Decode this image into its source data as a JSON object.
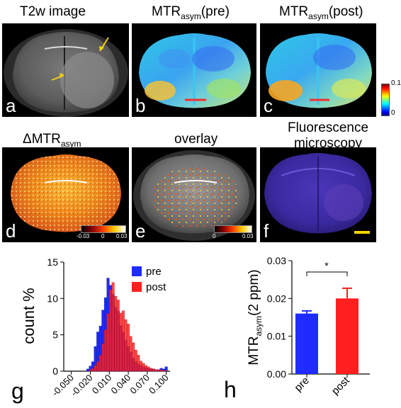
{
  "panels": {
    "a": {
      "label": "a",
      "title": "T2w image"
    },
    "b": {
      "label": "b",
      "title_main": "MTR",
      "title_sub": "asym",
      "title_tail": "(pre)"
    },
    "c": {
      "label": "c",
      "title_main": "MTR",
      "title_sub": "asym",
      "title_tail": "(post)"
    },
    "d": {
      "label": "d",
      "title_main": "ΔMTR",
      "title_sub": "asym"
    },
    "e": {
      "label": "e",
      "title": "overlay"
    },
    "f": {
      "label": "f",
      "title_line1": "Fluorescence",
      "title_line2": "microscopy"
    },
    "g": {
      "label": "g"
    },
    "h": {
      "label": "h"
    }
  },
  "colorbars": {
    "bc": {
      "max": "0.1",
      "min": "0"
    },
    "d": {
      "left": "-0.03",
      "mid": "0",
      "right": "0.03"
    },
    "e": {
      "left": "0",
      "right": "0.03"
    }
  },
  "colors": {
    "pre": "#1f2bff",
    "post": "#ff1f1f",
    "scale_bar": "#f2d400"
  },
  "chart_data": [
    {
      "type": "bar",
      "subtype": "histogram",
      "panel": "g",
      "ylabel": "count %",
      "xlabel": "",
      "x_ticks": [
        "-0.050",
        "-0.020",
        "0.010",
        "0.040",
        "0.070",
        "0.100"
      ],
      "y_ticks": [
        "0",
        "5",
        "10",
        "15"
      ],
      "ylim": [
        0,
        15
      ],
      "xlim": [
        -0.062,
        0.106
      ],
      "bin_width": 0.004,
      "bin_centers": [
        -0.04,
        -0.036,
        -0.032,
        -0.028,
        -0.024,
        -0.02,
        -0.016,
        -0.012,
        -0.008,
        -0.004,
        0.0,
        0.004,
        0.008,
        0.012,
        0.016,
        0.02,
        0.024,
        0.028,
        0.032,
        0.036,
        0.04,
        0.044,
        0.048,
        0.052,
        0.056,
        0.06,
        0.064,
        0.068,
        0.072,
        0.076,
        0.08,
        0.084,
        0.088,
        0.092,
        0.096,
        0.1,
        0.104
      ],
      "series": [
        {
          "name": "pre",
          "values": [
            0,
            0,
            0,
            0,
            0.3,
            0.7,
            1.3,
            3.4,
            5.4,
            6.2,
            8.4,
            10.1,
            12.8,
            11.8,
            10.6,
            8.8,
            8.3,
            6.3,
            5.4,
            4.3,
            3.4,
            2.6,
            1.8,
            1.3,
            1.0,
            0.8,
            0.6,
            0.5,
            0.4,
            0.3,
            0.3,
            0.2,
            0.2,
            0.4,
            0.3,
            0.6,
            0
          ]
        },
        {
          "name": "post",
          "values": [
            0,
            0,
            0,
            0,
            0,
            0.2,
            0.4,
            0.8,
            1.3,
            2.2,
            3.8,
            5.7,
            7.9,
            11.2,
            12.2,
            10.3,
            9.8,
            8.0,
            8.3,
            7.1,
            6.5,
            4.8,
            3.9,
            2.9,
            2.2,
            1.4,
            1.1,
            0.8,
            0.6,
            0.4,
            0.3,
            0.2,
            0.2,
            0.2,
            0.1,
            0.1,
            0
          ]
        }
      ],
      "legend_placement": "top-right"
    },
    {
      "type": "bar",
      "panel": "h",
      "categories": [
        "pre",
        "post"
      ],
      "values": [
        0.016,
        0.02
      ],
      "errors": [
        0.0007,
        0.0027
      ],
      "ylabel_main": "MTR",
      "ylabel_sub": "asym",
      "ylabel_tail": "(2 ppm)",
      "ylim": [
        0,
        0.03
      ],
      "y_ticks": [
        "0.00",
        "0.01",
        "0.02",
        "0.03"
      ],
      "significance": "*"
    }
  ]
}
